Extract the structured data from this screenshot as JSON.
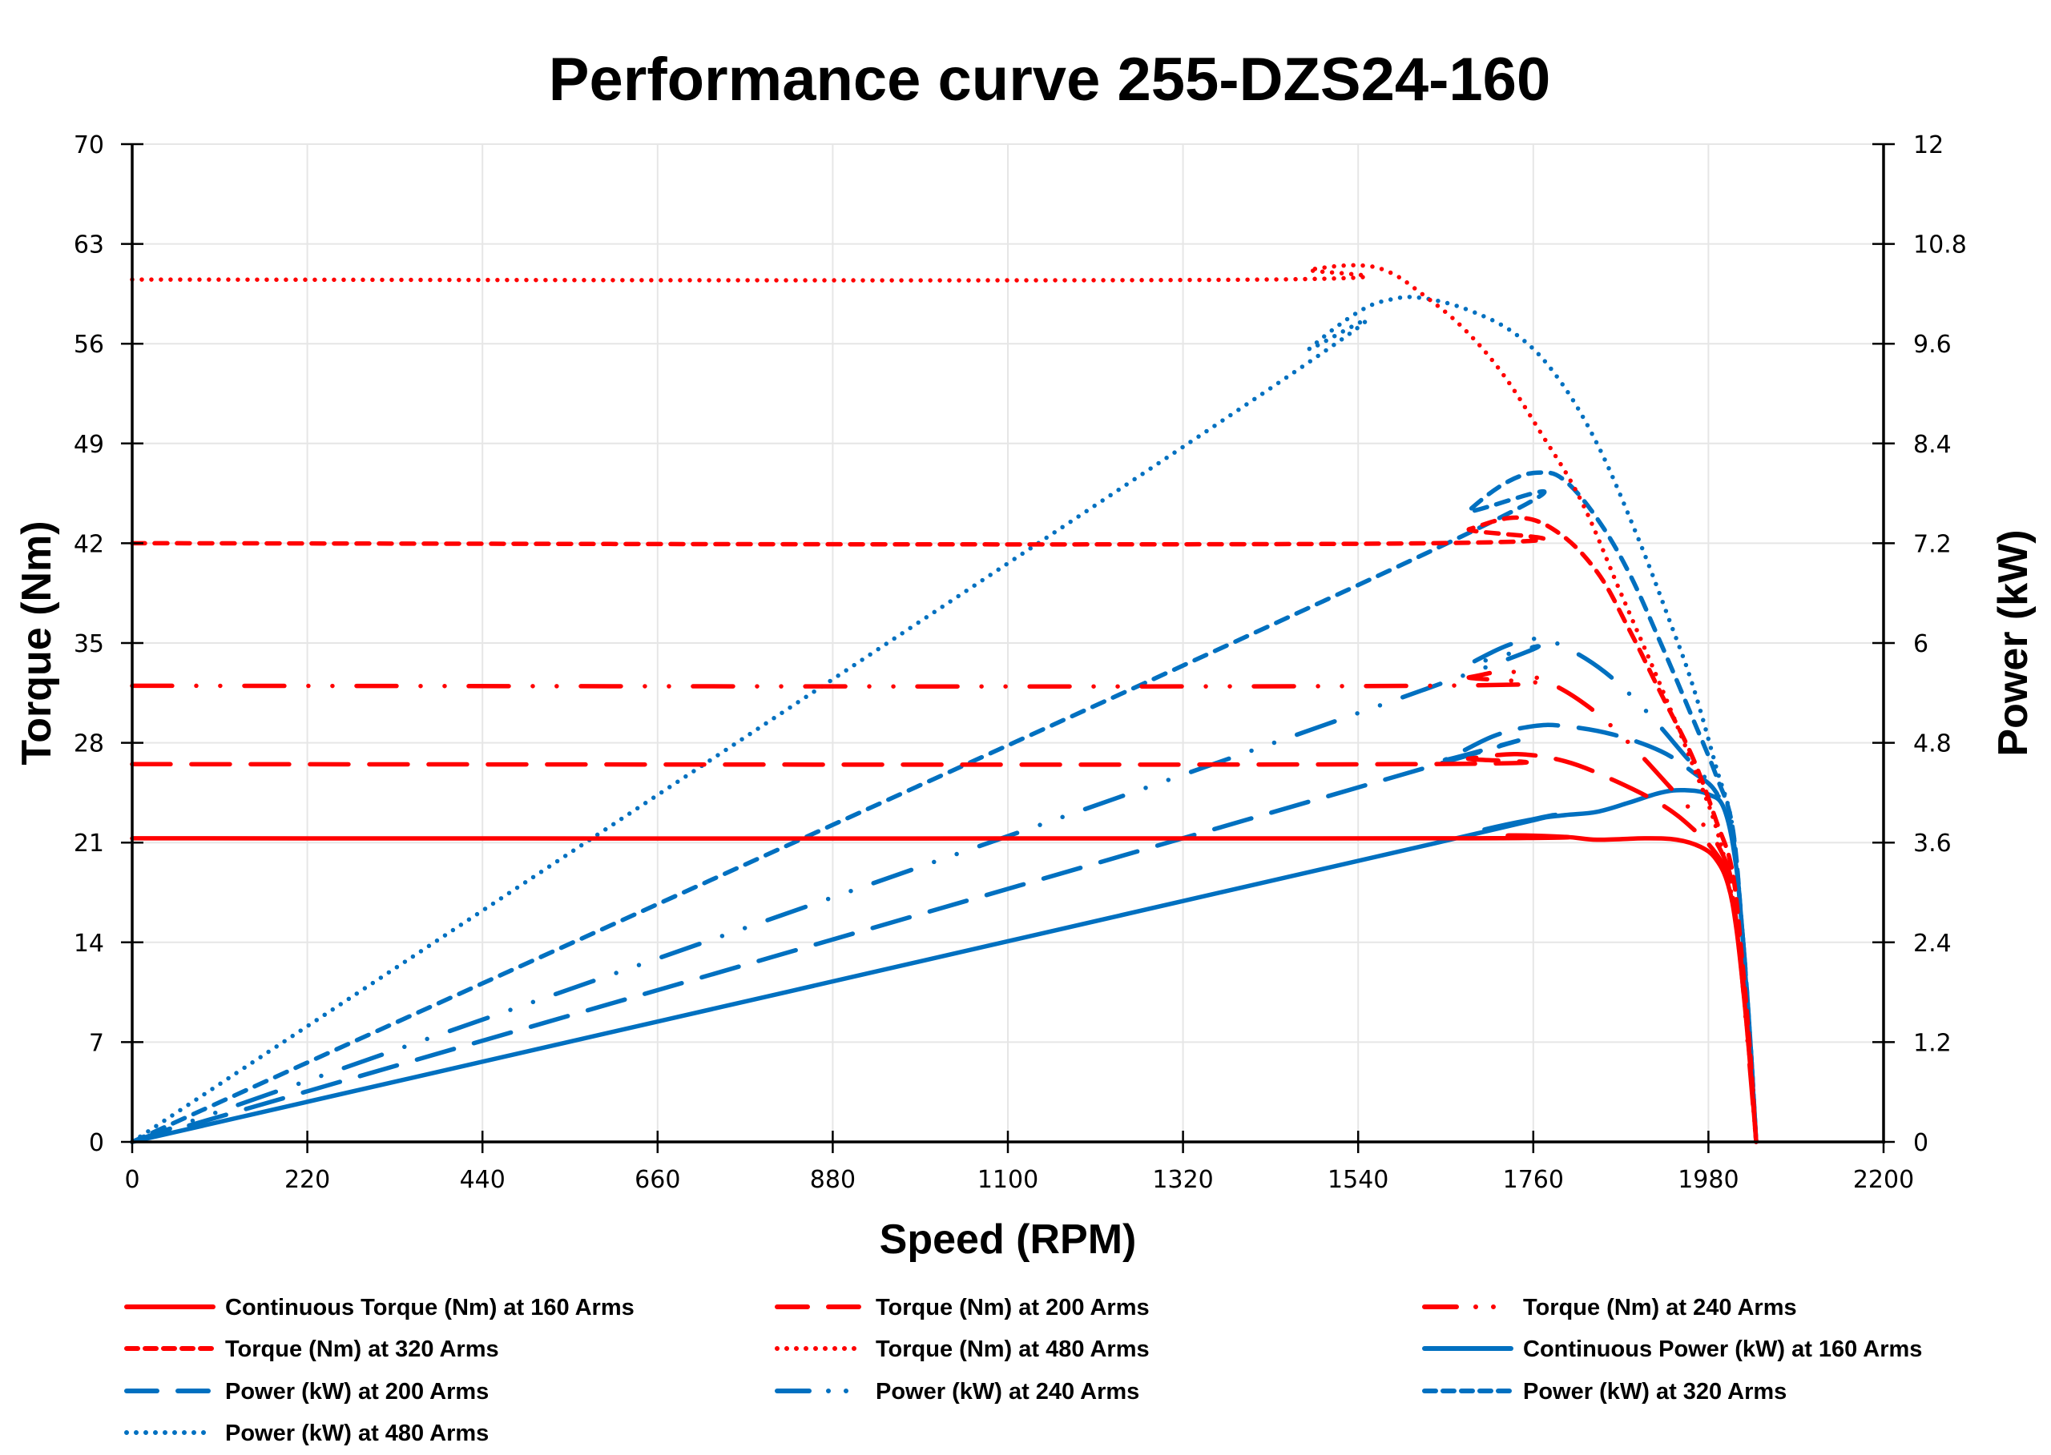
{
  "chart_data": {
    "type": "line",
    "title": "Performance curve 255-DZS24-160",
    "xlabel": "Speed (RPM)",
    "ylabel": "Torque (Nm)",
    "y2label": "Power (kW)",
    "xlim": [
      0,
      2200
    ],
    "ylim": [
      0,
      70
    ],
    "y2lim": [
      0,
      12
    ],
    "xticks": [
      "0",
      "220",
      "440",
      "660",
      "880",
      "1100",
      "1320",
      "1540",
      "1760",
      "1980",
      "2200"
    ],
    "yticks": [
      "0",
      "7",
      "14",
      "21",
      "28",
      "35",
      "42",
      "49",
      "56",
      "63",
      "70"
    ],
    "y2ticks": [
      "0",
      "1.2",
      "2.4",
      "3.6",
      "4.8",
      "6",
      "7.2",
      "8.4",
      "9.6",
      "10.8",
      "12"
    ],
    "grid": true,
    "legend_position": "bottom",
    "colors": {
      "torque": "#ff0000",
      "power": "#0070c0"
    },
    "series": [
      {
        "name": "Continuous Torque (Nm) at 160 Arms",
        "axis": "left",
        "color": "#ff0000",
        "dash": "solid",
        "x": [
          0,
          1650,
          1730,
          1800,
          1840,
          1900,
          1940,
          1970,
          1990,
          2005,
          2015,
          2025,
          2033,
          2040
        ],
        "y": [
          21.3,
          21.3,
          21.5,
          21.4,
          21.2,
          21.3,
          21.2,
          20.7,
          19.8,
          18,
          15,
          10,
          5,
          0
        ]
      },
      {
        "name": "Torque (Nm) at 200 Arms",
        "axis": "left",
        "color": "#ff0000",
        "dash": "long-dash",
        "x": [
          0,
          1600,
          1680,
          1740,
          1800,
          1860,
          1920,
          1960,
          1990,
          2005,
          2015,
          2025,
          2033,
          2040
        ],
        "y": [
          26.5,
          26.5,
          26.9,
          27.2,
          26.7,
          25.4,
          23.7,
          22,
          20.2,
          18.5,
          15.5,
          10.5,
          5,
          0
        ]
      },
      {
        "name": "Torque (Nm) at 240 Arms",
        "axis": "left",
        "color": "#ff0000",
        "dash": "long-dash-dot-dot",
        "x": [
          0,
          1620,
          1680,
          1730,
          1780,
          1830,
          1880,
          1930,
          1970,
          1995,
          2010,
          2020,
          2030,
          2040
        ],
        "y": [
          32,
          32,
          32.6,
          33,
          32.2,
          30.5,
          28,
          25,
          22.5,
          20.5,
          18,
          13,
          6.5,
          0
        ]
      },
      {
        "name": "Torque (Nm) at 320 Arms",
        "axis": "left",
        "color": "#ff0000",
        "dash": "dash",
        "x": [
          0,
          1630,
          1680,
          1740,
          1790,
          1840,
          1880,
          1920,
          1960,
          1990,
          2010,
          2022,
          2032,
          2040
        ],
        "y": [
          42,
          42,
          43,
          43.8,
          42.8,
          40,
          36,
          31.5,
          27,
          22.5,
          19,
          13,
          6.5,
          0
        ]
      },
      {
        "name": "Torque (Nm) at 480 Arms",
        "axis": "left",
        "color": "#ff0000",
        "dash": "dot",
        "x": [
          0,
          1420,
          1480,
          1540,
          1580,
          1620,
          1670,
          1720,
          1770,
          1820,
          1870,
          1920,
          1960,
          1990,
          2010,
          2025,
          2040
        ],
        "y": [
          60.5,
          60.5,
          61.2,
          61.5,
          61,
          59.5,
          57.2,
          54,
          49.7,
          45,
          38.5,
          32,
          26.5,
          22,
          17,
          10,
          0
        ]
      },
      {
        "name": "Continuous Power (kW) at 160 Arms",
        "axis": "right",
        "color": "#0070c0",
        "dash": "solid",
        "x": [
          0,
          1640,
          1700,
          1760,
          1800,
          1840,
          1880,
          1920,
          1950,
          1980,
          2000,
          2015,
          2025,
          2033,
          2040
        ],
        "y": [
          0,
          3.6,
          3.76,
          3.88,
          3.93,
          3.97,
          4.08,
          4.2,
          4.23,
          4.18,
          4.0,
          3.3,
          2.2,
          1.1,
          0
        ]
      },
      {
        "name": "Power (kW) at 200 Arms",
        "axis": "right",
        "color": "#0070c0",
        "dash": "long-dash",
        "x": [
          0,
          1600,
          1650,
          1710,
          1760,
          1800,
          1860,
          1920,
          1960,
          1990,
          2010,
          2022,
          2032,
          2040
        ],
        "y": [
          0,
          4.43,
          4.6,
          4.88,
          5.0,
          5.0,
          4.9,
          4.7,
          4.45,
          4.2,
          3.7,
          2.6,
          1.3,
          0
        ]
      },
      {
        "name": "Power (kW) at 240 Arms",
        "axis": "right",
        "color": "#0070c0",
        "dash": "long-dash-dot-dot",
        "x": [
          0,
          1620,
          1680,
          1730,
          1765,
          1800,
          1850,
          1900,
          1950,
          1990,
          2010,
          2022,
          2032,
          2040
        ],
        "y": [
          0,
          5.43,
          5.75,
          5.98,
          6.05,
          5.95,
          5.65,
          5.2,
          4.65,
          4.2,
          3.7,
          2.6,
          1.3,
          0
        ]
      },
      {
        "name": "Power (kW) at 320 Arms",
        "axis": "right",
        "color": "#0070c0",
        "dash": "dash",
        "x": [
          0,
          1630,
          1680,
          1730,
          1770,
          1800,
          1840,
          1880,
          1920,
          1960,
          1990,
          2010,
          2022,
          2032,
          2040
        ],
        "y": [
          0,
          7.1,
          7.6,
          7.95,
          8.05,
          7.95,
          7.5,
          6.85,
          6.0,
          5.1,
          4.4,
          3.8,
          2.6,
          1.3,
          0
        ]
      },
      {
        "name": "Power (kW) at 480 Arms",
        "axis": "right",
        "color": "#0070c0",
        "dash": "dot",
        "x": [
          0,
          1420,
          1480,
          1540,
          1580,
          1620,
          1680,
          1740,
          1790,
          1840,
          1890,
          1930,
          1960,
          1990,
          2010,
          2022,
          2032,
          2040
        ],
        "y": [
          0,
          9.0,
          9.55,
          9.98,
          10.13,
          10.15,
          10.0,
          9.7,
          9.2,
          8.4,
          7.3,
          6.3,
          5.5,
          4.5,
          3.8,
          2.6,
          1.3,
          0
        ]
      }
    ]
  }
}
